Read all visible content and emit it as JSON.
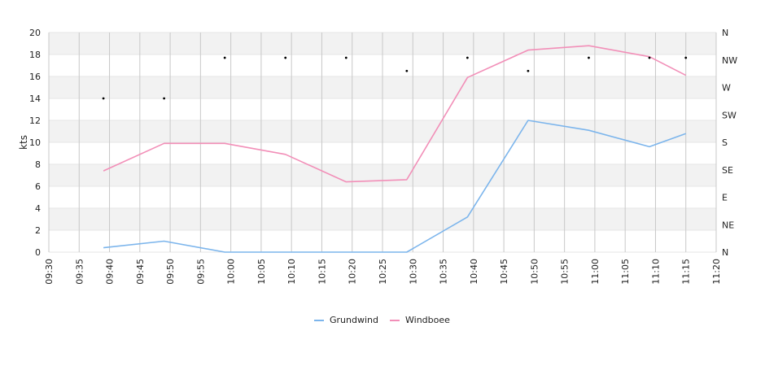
{
  "chart_data": {
    "type": "line",
    "title": "",
    "xlabel": "",
    "ylabel": "kts",
    "ylim": [
      0,
      20
    ],
    "y_ticks": [
      "0",
      "2",
      "4",
      "6",
      "8",
      "10",
      "12",
      "14",
      "16",
      "18",
      "20"
    ],
    "x_ticks": [
      "09:30",
      "09:35",
      "09:40",
      "09:45",
      "09:50",
      "09:55",
      "10:00",
      "10:05",
      "10:10",
      "10:15",
      "10:20",
      "10:25",
      "10:30",
      "10:35",
      "10:40",
      "10:45",
      "10:50",
      "10:55",
      "11:00",
      "11:05",
      "11:10",
      "11:15",
      "11:20"
    ],
    "x_range": [
      "09:30",
      "11:20"
    ],
    "y2_ticks": [
      "N",
      "NE",
      "E",
      "SE",
      "S",
      "SW",
      "W",
      "NW",
      "N"
    ],
    "grid": true,
    "legend_position": "bottom",
    "x": [
      "09:39",
      "09:49",
      "09:59",
      "10:09",
      "10:19",
      "10:29",
      "10:39",
      "10:49",
      "10:59",
      "11:09",
      "11:15"
    ],
    "series": [
      {
        "name": "Grundwind",
        "color": "#7cb5ec",
        "values": [
          0.4,
          1.0,
          0.0,
          0.0,
          0.0,
          0.0,
          3.2,
          12.0,
          11.1,
          9.6,
          10.8
        ]
      },
      {
        "name": "Windboee",
        "color": "#f28fb8",
        "values": [
          7.4,
          9.9,
          9.9,
          8.9,
          6.4,
          6.6,
          15.9,
          18.4,
          18.8,
          17.8,
          16.1
        ]
      }
    ],
    "direction_markers": {
      "x": [
        "09:39",
        "09:49",
        "09:59",
        "10:09",
        "10:19",
        "10:29",
        "10:39",
        "10:49",
        "10:59",
        "11:09",
        "11:15"
      ],
      "values": [
        14.0,
        14.0,
        17.7,
        17.7,
        17.7,
        16.5,
        17.7,
        16.5,
        17.7,
        17.7,
        17.7
      ]
    }
  }
}
